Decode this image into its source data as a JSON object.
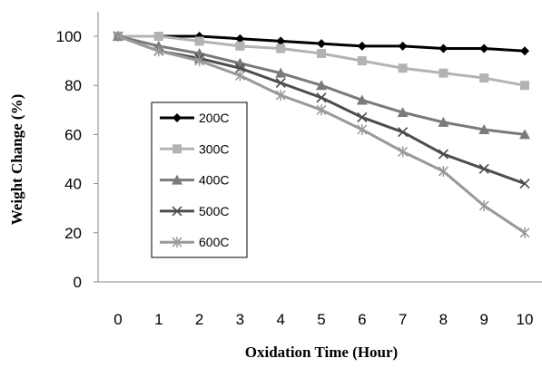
{
  "chart_data": {
    "type": "line",
    "title": "",
    "xlabel": "Oxidation Time (Hour)",
    "ylabel": "Weight Change (%)",
    "x": [
      0,
      1,
      2,
      3,
      4,
      5,
      6,
      7,
      8,
      9,
      10
    ],
    "xlim": [
      0,
      10
    ],
    "ylim": [
      0,
      100
    ],
    "yticks": [
      0,
      20,
      40,
      60,
      80,
      100
    ],
    "grid": false,
    "legend_position": "left",
    "series": [
      {
        "name": "200C",
        "marker": "diamond",
        "color": "#000000",
        "values": [
          100,
          100,
          100,
          99,
          98,
          97,
          96,
          96,
          95,
          95,
          94
        ]
      },
      {
        "name": "300C",
        "marker": "square",
        "color": "#b3b3b3",
        "values": [
          100,
          100,
          98,
          96,
          95,
          93,
          90,
          87,
          85,
          83,
          80
        ]
      },
      {
        "name": "400C",
        "marker": "triangle",
        "color": "#7a7a7a",
        "values": [
          100,
          96,
          93,
          89,
          85,
          80,
          74,
          69,
          65,
          62,
          60
        ]
      },
      {
        "name": "500C",
        "marker": "x",
        "color": "#4d4d4d",
        "values": [
          100,
          94,
          91,
          87,
          81,
          75,
          67,
          61,
          52,
          46,
          40
        ]
      },
      {
        "name": "600C",
        "marker": "star",
        "color": "#999999",
        "values": [
          100,
          94,
          90,
          84,
          76,
          70,
          62,
          53,
          45,
          31,
          20
        ]
      }
    ]
  }
}
